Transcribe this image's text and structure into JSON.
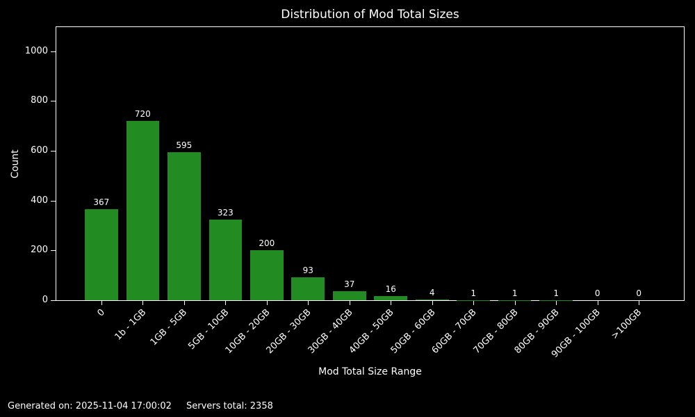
{
  "chart_data": {
    "type": "bar",
    "title": "Distribution of Mod Total Sizes",
    "categories": [
      "0",
      "1b - 1GB",
      "1GB - 5GB",
      "5GB - 10GB",
      "10GB - 20GB",
      "20GB - 30GB",
      "30GB - 40GB",
      "40GB - 50GB",
      "50GB - 60GB",
      "60GB - 70GB",
      "70GB - 80GB",
      "80GB - 90GB",
      "90GB - 100GB",
      ">100GB"
    ],
    "values": [
      367,
      720,
      595,
      323,
      200,
      93,
      37,
      16,
      4,
      1,
      1,
      1,
      0,
      0
    ],
    "xlabel": "Mod Total Size Range",
    "ylabel": "Count",
    "ylim": [
      0,
      1097
    ],
    "yticks": [
      0,
      200,
      400,
      600,
      800,
      1000
    ],
    "grid": false,
    "legend": "none",
    "bar_value_labels": true,
    "colors": {
      "background": "#000000",
      "text": "#ffffff",
      "bar": "#228B22"
    }
  },
  "footer": {
    "generated": "Generated on: 2025-11-04 17:00:02",
    "servers_total": "Servers total: 2358"
  }
}
